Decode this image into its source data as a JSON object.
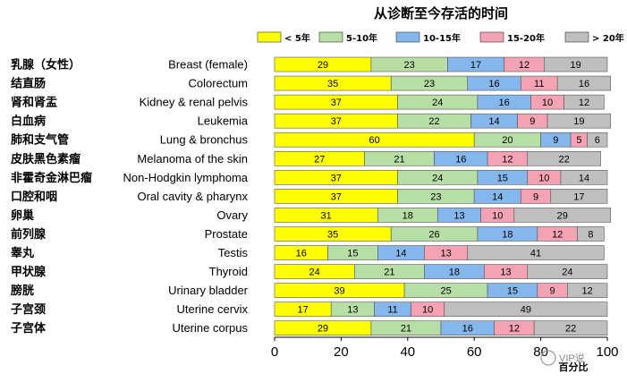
{
  "chart_data": {
    "type": "bar",
    "orientation": "horizontal",
    "stacked": true,
    "title": "从诊断至今存活的时间",
    "xlabel": "百分比",
    "xlim": [
      0,
      100
    ],
    "xticks": [
      0,
      20,
      40,
      60,
      80,
      100
    ],
    "grid": false,
    "legend_position": "top-right",
    "categories_zh": [
      "乳腺（女性）",
      "结直肠",
      "肾和肾盂",
      "白血病",
      "肺和支气管",
      "皮肤黑色素瘤",
      "非霍奇金淋巴瘤",
      "口腔和咽",
      "卵巢",
      "前列腺",
      "睾丸",
      "甲状腺",
      "膀胱",
      "子宫颈",
      "子宫体"
    ],
    "categories": [
      "Breast (female)",
      "Colorectum",
      "Kidney & renal pelvis",
      "Leukemia",
      "Lung & bronchus",
      "Melanoma of the skin",
      "Non-Hodgkin lymphoma",
      "Oral cavity & pharynx",
      "Ovary",
      "Prostate",
      "Testis",
      "Thyroid",
      "Urinary bladder",
      "Uterine cervix",
      "Uterine corpus"
    ],
    "series": [
      {
        "name": "< 5年",
        "color": "#FFFF00",
        "values": [
          29,
          35,
          37,
          37,
          60,
          27,
          37,
          37,
          31,
          35,
          16,
          24,
          39,
          17,
          29
        ]
      },
      {
        "name": "5-10年",
        "color": "#B7DFA5",
        "values": [
          23,
          23,
          24,
          22,
          20,
          21,
          24,
          23,
          18,
          26,
          15,
          21,
          25,
          13,
          21
        ]
      },
      {
        "name": "10-15年",
        "color": "#86B7EC",
        "values": [
          17,
          16,
          16,
          14,
          9,
          16,
          15,
          14,
          13,
          18,
          14,
          18,
          15,
          11,
          16
        ]
      },
      {
        "name": "15-20年",
        "color": "#F4A3B4",
        "values": [
          12,
          11,
          10,
          9,
          5,
          12,
          10,
          9,
          10,
          12,
          13,
          13,
          9,
          10,
          12
        ]
      },
      {
        "name": "> 20年",
        "color": "#BFBFBF",
        "values": [
          19,
          16,
          12,
          19,
          6,
          22,
          14,
          17,
          29,
          8,
          41,
          24,
          12,
          49,
          22
        ]
      }
    ]
  },
  "watermark": "VIP说"
}
